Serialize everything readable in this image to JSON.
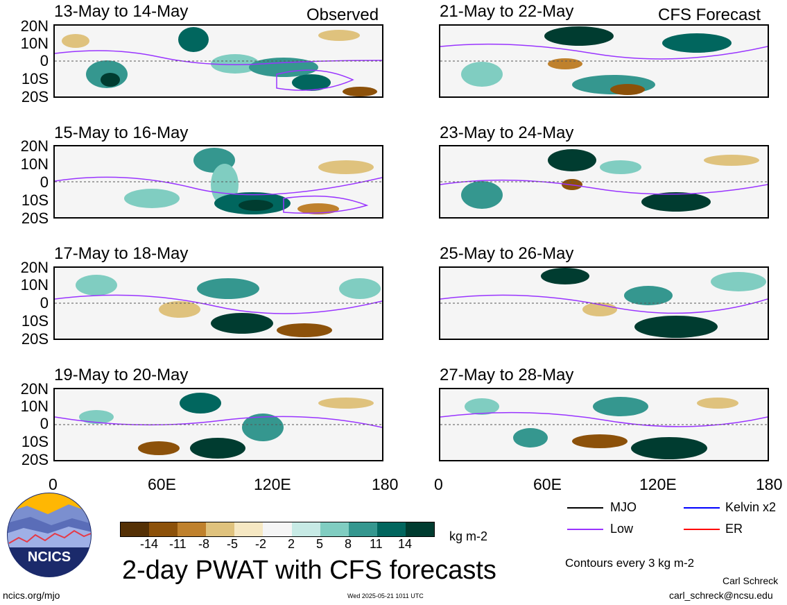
{
  "header": {
    "left_tag": "Observed",
    "right_tag": "CFS Forecast"
  },
  "panels_left": [
    {
      "title": "13-May to 14-May"
    },
    {
      "title": "15-May to 16-May"
    },
    {
      "title": "17-May to 18-May"
    },
    {
      "title": "19-May to 20-May"
    }
  ],
  "panels_right": [
    {
      "title": "21-May to 22-May"
    },
    {
      "title": "23-May to 24-May"
    },
    {
      "title": "25-May to 26-May"
    },
    {
      "title": "27-May to 28-May"
    }
  ],
  "lat_labels": [
    "20N",
    "10N",
    "0",
    "10S",
    "20S"
  ],
  "lon_labels": [
    "0",
    "60E",
    "120E",
    "180"
  ],
  "colorbar": {
    "ticks": [
      "-14",
      "-11",
      "-8",
      "-5",
      "-2",
      "2",
      "5",
      "8",
      "11",
      "14"
    ],
    "colors": [
      "#543005",
      "#8c510a",
      "#bf812d",
      "#dfc27d",
      "#f6e8c3",
      "#f5f5f5",
      "#c7eae5",
      "#80cdc1",
      "#35978f",
      "#01665e",
      "#003c30"
    ],
    "unit": "kg m-2"
  },
  "legend": {
    "mjo": "MJO",
    "mjo_color": "#000000",
    "kelvin": "Kelvin x2",
    "kelvin_color": "#0000ff",
    "low": "Low",
    "low_color": "#9933ff",
    "er": "ER",
    "er_color": "#ff0000"
  },
  "main_title": "2-day PWAT with CFS forecasts",
  "contour_note": "Contours every 3 kg m-2",
  "logo_text": "NCICS",
  "footer": {
    "url": "ncics.org/mjo",
    "timestamp": "Wed 2025-05-21 1011 UTC",
    "author": "Carl Schreck",
    "email": "carl_schreck@ncsu.edu"
  }
}
